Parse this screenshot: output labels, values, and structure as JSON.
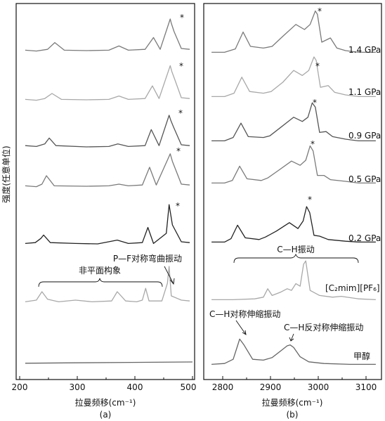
{
  "figure": {
    "ylabel": "强度(任意单位)",
    "panels": [
      {
        "id": "a",
        "caption": "(a)",
        "xlabel": "拉曼频移(cm⁻¹)",
        "ticks": [
          "200",
          "300",
          "400",
          "500"
        ],
        "annotations": {
          "bend": "P—F对称弯曲振动",
          "nonplanar": "非平面构象",
          "star": "*"
        }
      },
      {
        "id": "b",
        "caption": "(b)",
        "xlabel": "拉曼频移(cm⁻¹)",
        "ticks": [
          "2800",
          "2900",
          "3000",
          "3100"
        ],
        "annotations": {
          "ch": "C—H振动",
          "sym": "C—H对称伸缩振动",
          "asym": "C—H反对称伸缩振动",
          "star": "*"
        },
        "trace_labels": [
          "1.4 GPa",
          "1.1 GPa",
          "0.9 GPa",
          "0.5 GPa",
          "0.2 GPa",
          "[C₂mim][PF₆]",
          "甲醇"
        ]
      }
    ]
  },
  "chart_data": [
    {
      "type": "line",
      "title": "",
      "xlabel": "拉曼频移(cm⁻¹)",
      "ylabel": "强度(任意单位)",
      "xlim": [
        200,
        510
      ],
      "y_units": "arbitrary, offset stacked",
      "series": [
        {
          "name": "1.4 GPa",
          "color": "#7a7a7a",
          "x": [
            210,
            230,
            250,
            263,
            280,
            320,
            360,
            378,
            395,
            425,
            440,
            452,
            470,
            472,
            477,
            490,
            505
          ],
          "y": [
            0.3,
            0.2,
            0.4,
            1.2,
            0.3,
            0.25,
            0.3,
            0.8,
            0.3,
            0.4,
            1.8,
            0.4,
            4.0,
            3.5,
            2.5,
            0.5,
            0.4
          ]
        },
        {
          "name": "1.1 GPa",
          "color": "#a8a8a8",
          "x": [
            210,
            230,
            245,
            258,
            275,
            320,
            360,
            378,
            395,
            425,
            438,
            450,
            470,
            473,
            478,
            490,
            505
          ],
          "y": [
            0.3,
            0.2,
            0.4,
            1.0,
            0.3,
            0.25,
            0.3,
            0.7,
            0.3,
            0.4,
            1.9,
            0.4,
            4.3,
            3.6,
            2.7,
            0.5,
            0.4
          ]
        },
        {
          "name": "0.9 GPa",
          "color": "#555555",
          "x": [
            210,
            230,
            245,
            253,
            265,
            320,
            360,
            376,
            395,
            425,
            436,
            450,
            468,
            471,
            476,
            490,
            505
          ],
          "y": [
            0.4,
            0.3,
            0.6,
            1.3,
            0.4,
            0.25,
            0.3,
            0.6,
            0.3,
            0.4,
            2.3,
            0.4,
            4.0,
            3.4,
            2.6,
            0.5,
            0.4
          ]
        },
        {
          "name": "0.5 GPa",
          "color": "#7a7a7a",
          "x": [
            210,
            230,
            240,
            248,
            262,
            320,
            360,
            378,
            395,
            420,
            433,
            445,
            466,
            470,
            474,
            490,
            505
          ],
          "y": [
            0.3,
            0.2,
            0.5,
            1.5,
            0.3,
            0.25,
            0.3,
            0.5,
            0.3,
            0.4,
            2.5,
            0.4,
            3.5,
            4.1,
            3.2,
            0.5,
            0.4
          ]
        },
        {
          "name": "0.2 GPa",
          "color": "#222222",
          "x": [
            210,
            228,
            238,
            243,
            255,
            300,
            340,
            375,
            395,
            420,
            430,
            440,
            463,
            468,
            474,
            490,
            505
          ],
          "y": [
            0.3,
            0.4,
            0.9,
            1.3,
            0.4,
            0.3,
            0.25,
            0.7,
            0.3,
            0.4,
            2.2,
            0.3,
            1.5,
            4.9,
            2.5,
            0.5,
            0.4
          ]
        },
        {
          "name": "[C₂mim][PF₆]",
          "color": "#a8a8a8",
          "x": [
            210,
            230,
            240,
            250,
            270,
            300,
            330,
            365,
            375,
            390,
            410,
            420,
            426,
            432,
            455,
            465,
            468,
            472,
            490,
            505
          ],
          "y": [
            0.3,
            0.5,
            1.5,
            0.6,
            0.3,
            0.5,
            0.3,
            0.4,
            1.5,
            0.4,
            0.3,
            0.5,
            1.9,
            0.4,
            0.4,
            2.5,
            4.5,
            1.0,
            0.5,
            0.4
          ]
        },
        {
          "name": "甲醇",
          "color": "#666666",
          "x": [
            210,
            300,
            400,
            510
          ],
          "y": [
            0.1,
            0.15,
            0.2,
            0.25
          ]
        }
      ]
    },
    {
      "type": "line",
      "title": "",
      "xlabel": "拉曼频移(cm⁻¹)",
      "ylabel": "强度(任意单位)",
      "xlim": [
        2750,
        3150
      ],
      "y_units": "arbitrary, offset stacked",
      "series": [
        {
          "name": "1.4 GPa",
          "color": "#7a7a7a",
          "x": [
            2760,
            2790,
            2815,
            2833,
            2850,
            2880,
            2900,
            2925,
            2955,
            2975,
            2988,
            3000,
            3005,
            3015,
            3035,
            3050,
            3070,
            3100,
            3140
          ],
          "y": [
            0.3,
            0.3,
            0.7,
            2.7,
            1.0,
            0.8,
            1.0,
            2.2,
            3.6,
            3.0,
            3.6,
            5.2,
            4.8,
            1.5,
            2.0,
            0.8,
            0.5,
            0.3,
            0.3
          ]
        },
        {
          "name": "1.1 GPa",
          "color": "#a8a8a8",
          "x": [
            2760,
            2790,
            2812,
            2830,
            2848,
            2880,
            2898,
            2925,
            2950,
            2970,
            2985,
            2997,
            3002,
            3012,
            3030,
            3045,
            3070,
            3100,
            3140
          ],
          "y": [
            0.3,
            0.3,
            0.7,
            2.6,
            0.9,
            0.7,
            0.9,
            2.0,
            3.4,
            2.8,
            3.4,
            5.0,
            4.6,
            1.4,
            1.6,
            0.8,
            0.5,
            0.3,
            0.3
          ]
        },
        {
          "name": "0.9 GPa",
          "color": "#555555",
          "x": [
            2760,
            2790,
            2810,
            2828,
            2845,
            2880,
            2895,
            2920,
            2950,
            2970,
            2983,
            2993,
            3000,
            3010,
            3025,
            3040,
            3070,
            3100,
            3140
          ],
          "y": [
            0.3,
            0.3,
            0.7,
            2.4,
            0.8,
            0.7,
            0.9,
            1.9,
            3.1,
            2.6,
            3.1,
            4.8,
            4.3,
            1.3,
            1.4,
            0.8,
            0.5,
            0.3,
            0.3
          ]
        },
        {
          "name": "0.5 GPa",
          "color": "#7a7a7a",
          "x": [
            2760,
            2790,
            2808,
            2825,
            2842,
            2875,
            2890,
            2915,
            2945,
            2965,
            2978,
            2988,
            2995,
            3005,
            3020,
            3035,
            3070,
            3100,
            3140
          ],
          "y": [
            0.3,
            0.3,
            0.6,
            2.3,
            0.8,
            0.6,
            0.9,
            1.8,
            2.9,
            2.4,
            3.0,
            4.7,
            4.1,
            1.2,
            1.2,
            0.7,
            0.5,
            0.3,
            0.3
          ]
        },
        {
          "name": "0.2 GPa",
          "color": "#222222",
          "x": [
            2760,
            2790,
            2805,
            2820,
            2838,
            2870,
            2885,
            2910,
            2940,
            2960,
            2972,
            2980,
            2987,
            2997,
            3010,
            3030,
            3070,
            3100,
            3140
          ],
          "y": [
            0.3,
            0.3,
            0.7,
            2.3,
            0.8,
            0.6,
            0.9,
            1.6,
            2.6,
            1.9,
            2.8,
            4.5,
            3.8,
            1.1,
            1.0,
            0.6,
            0.4,
            0.3,
            0.3
          ]
        },
        {
          "name": "[C₂mim][PF₆]",
          "color": "#a8a8a8",
          "x": [
            2760,
            2810,
            2860,
            2880,
            2890,
            2900,
            2920,
            2935,
            2945,
            2955,
            2965,
            2973,
            2978,
            2988,
            3010,
            3040,
            3060,
            3100,
            3140
          ],
          "y": [
            0.3,
            0.3,
            0.4,
            0.6,
            1.6,
            0.8,
            1.2,
            1.6,
            1.4,
            2.2,
            1.9,
            4.5,
            4.9,
            1.4,
            0.8,
            0.6,
            0.7,
            0.4,
            0.3
          ]
        },
        {
          "name": "甲醇",
          "color": "#666666",
          "x": [
            2760,
            2790,
            2810,
            2820,
            2825,
            2835,
            2855,
            2880,
            2900,
            2920,
            2935,
            2942,
            2950,
            2965,
            2985,
            3020,
            3080,
            3140
          ],
          "y": [
            0.3,
            0.4,
            0.9,
            2.5,
            3.3,
            2.6,
            0.9,
            0.8,
            1.1,
            1.9,
            2.5,
            2.6,
            2.3,
            1.2,
            0.6,
            0.4,
            0.3,
            0.3
          ]
        }
      ]
    }
  ]
}
